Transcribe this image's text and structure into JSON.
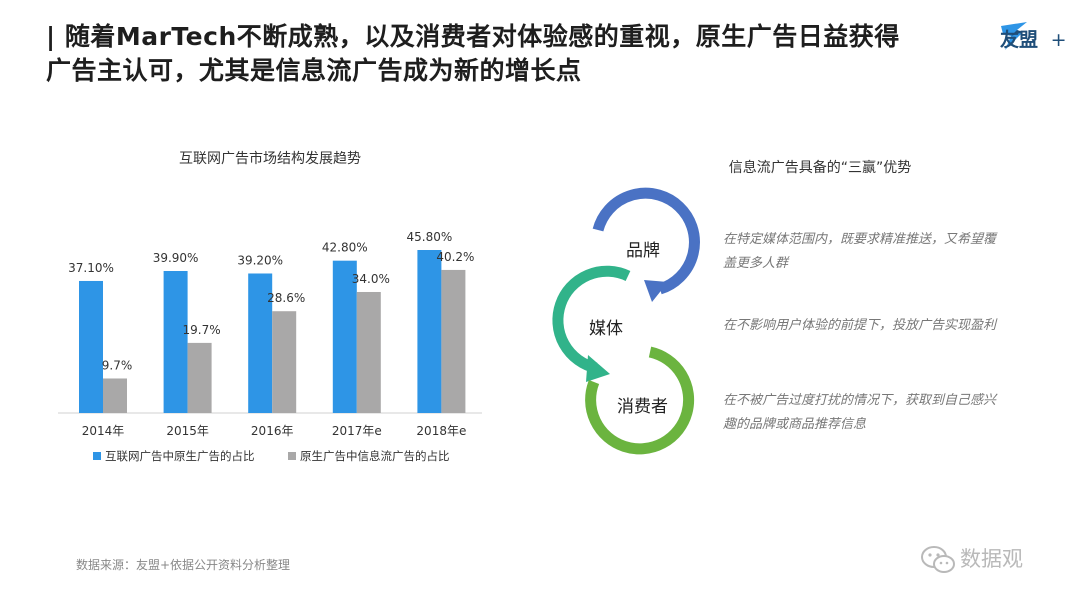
{
  "headline": {
    "bar": "|",
    "line1": "随着MarTech不断成熟，以及消费者对体验感的重视，原生广告日益获得",
    "line2": "广告主认可，尤其是信息流广告成为新的增长点"
  },
  "logo": {
    "text": "友盟",
    "plus": "+",
    "color": "#1f4e79"
  },
  "chart_data": {
    "type": "bar",
    "title": "互联网广告市场结构发展趋势",
    "categories": [
      "2014年",
      "2015年",
      "2016年",
      "2017年e",
      "2018年e"
    ],
    "series": [
      {
        "name": "互联网广告中原生广告的占比",
        "color": "#2e95e6",
        "values": [
          37.1,
          39.9,
          39.2,
          42.8,
          45.8
        ],
        "labels": [
          "37.10%",
          "39.90%",
          "39.20%",
          "42.80%",
          "45.80%"
        ]
      },
      {
        "name": "原生广告中信息流广告的占比",
        "color": "#a9a8a8",
        "values": [
          9.7,
          19.7,
          28.6,
          34.0,
          40.2
        ],
        "labels": [
          "9.7%",
          "19.7%",
          "28.6%",
          "34.0%",
          "40.2%"
        ]
      }
    ],
    "ylim": [
      0,
      50
    ],
    "grid": false,
    "legend": "bottom"
  },
  "right": {
    "title": "信息流广告具备的“三赢”优势",
    "items": [
      {
        "label": "品牌",
        "color": "#4a72c4",
        "desc_line1": "在特定媒体范围内，既要求精准推送，又希望覆",
        "desc_line2": "盖更多人群"
      },
      {
        "label": "媒体",
        "color": "#31b38a",
        "desc_line1": "在不影响用户体验的前提下，投放广告实现盈利",
        "desc_line2": ""
      },
      {
        "label": "消费者",
        "color": "#6bb43f",
        "desc_line1": "在不被广告过度打扰的情况下，获取到自己感兴",
        "desc_line2": "趣的品牌或商品推荐信息"
      }
    ]
  },
  "source": "数据来源：友盟+依据公开资料分析整理",
  "watermark": "数据观"
}
